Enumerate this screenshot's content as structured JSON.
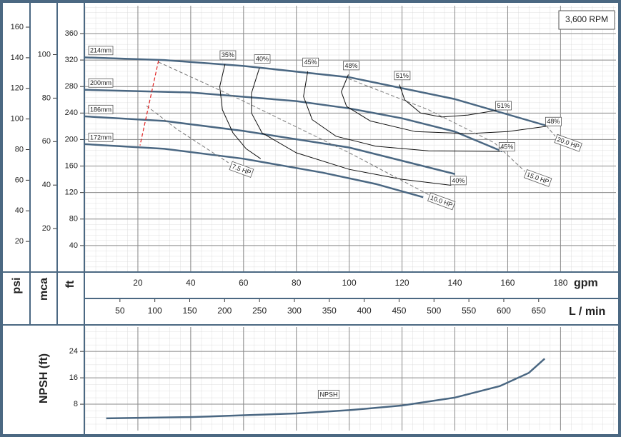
{
  "chart_data": [
    {
      "type": "line",
      "title": "3,600 RPM",
      "xlabel": "gpm",
      "xlim": [
        0,
        201
      ],
      "xticks": [
        20,
        40,
        60,
        80,
        100,
        120,
        140,
        160,
        180
      ],
      "x2label": "L / min",
      "x2lim": [
        0,
        760.8
      ],
      "x2ticks": [
        50,
        100,
        150,
        200,
        250,
        300,
        350,
        400,
        450,
        500,
        550,
        600,
        650
      ],
      "ylabel": "ft",
      "ylim": [
        0,
        402
      ],
      "yticks": [
        40,
        80,
        120,
        160,
        200,
        240,
        280,
        320,
        360
      ],
      "y2label": "psi",
      "y2lim": [
        0,
        174
      ],
      "y2ticks": [
        20,
        40,
        60,
        80,
        100,
        120,
        140,
        160
      ],
      "y3label": "mca",
      "y3lim": [
        0,
        122.5
      ],
      "y3ticks": [
        20,
        40,
        60,
        80,
        100
      ],
      "grid": true,
      "series": [
        {
          "name": "214mm",
          "color": "#4a6782",
          "width": 2.5,
          "label_at": "start",
          "x": [
            0,
            30,
            60,
            100,
            140,
            174.6
          ],
          "values": [
            324,
            320,
            311,
            294,
            261,
            221
          ]
        },
        {
          "name": "200mm",
          "color": "#4a6782",
          "width": 2.5,
          "label_at": "start",
          "x": [
            0,
            40,
            80,
            100,
            120,
            140,
            158
          ],
          "values": [
            275,
            271,
            258,
            247,
            232,
            212,
            182
          ]
        },
        {
          "name": "186mm",
          "color": "#4a6782",
          "width": 2.5,
          "label_at": "start",
          "x": [
            0,
            30,
            60,
            100,
            120,
            140
          ],
          "values": [
            235,
            228,
            213,
            188,
            168,
            148
          ]
        },
        {
          "name": "172mm",
          "color": "#4a6782",
          "width": 2.5,
          "label_at": "start",
          "x": [
            0,
            30,
            60,
            90,
            110,
            128
          ],
          "values": [
            193,
            186,
            171,
            150,
            133,
            113
          ]
        },
        {
          "name": "35%",
          "color": "#111111",
          "width": 1,
          "label_at": "top",
          "x": [
            53,
            51,
            52,
            56,
            61,
            66.5
          ],
          "values": [
            314,
            280,
            245,
            210,
            186,
            171
          ]
        },
        {
          "name": "40%",
          "color": "#111111",
          "width": 1,
          "label_at": "both",
          "x": [
            66,
            63,
            63,
            67,
            80,
            100,
            120,
            138.6
          ],
          "values": [
            308,
            270,
            240,
            210,
            180,
            155,
            140,
            131
          ]
        },
        {
          "name": "45%",
          "color": "#111111",
          "width": 1,
          "label_at": "both",
          "x": [
            84.3,
            82.7,
            86,
            95,
            110,
            130,
            157
          ],
          "values": [
            303,
            265,
            230,
            205,
            190,
            183,
            182
          ]
        },
        {
          "name": "48%",
          "color": "#111111",
          "width": 1,
          "label_at": "both",
          "x": [
            99.7,
            97,
            99,
            108,
            125,
            145,
            160,
            174.6
          ],
          "values": [
            298,
            272,
            250,
            228,
            212,
            209,
            212,
            220
          ]
        },
        {
          "name": "51%",
          "color": "#111111",
          "width": 1,
          "label_at": "both",
          "x": [
            119,
            121,
            127,
            135,
            145,
            155.7
          ],
          "values": [
            283,
            260,
            240,
            234,
            237,
            244
          ]
        },
        {
          "name": "7.5 HP",
          "color": "#777777",
          "width": 1,
          "dashed": true,
          "label_at": "end",
          "x": [
            23.2,
            35,
            54.3
          ],
          "values": [
            251,
            215,
            165
          ]
        },
        {
          "name": "10.0 HP",
          "color": "#777777",
          "width": 1,
          "dashed": true,
          "label_at": "end",
          "x": [
            27.8,
            60,
            100,
            130
          ],
          "values": [
            317,
            258,
            180,
            117
          ]
        },
        {
          "name": "15.0 HP",
          "color": "#777777",
          "width": 1,
          "dashed": true,
          "label_at": "end",
          "x": [
            99.7,
            130,
            155,
            166.5
          ],
          "values": [
            292,
            245,
            195,
            152
          ]
        },
        {
          "name": "20.0 HP",
          "color": "#777777",
          "width": 1,
          "dashed": true,
          "label_at": "end",
          "x": [
            174.6,
            178
          ],
          "values": [
            221,
            205
          ]
        },
        {
          "color": "#e02020",
          "width": 1.2,
          "dashed": true,
          "x": [
            27.8,
            20.8
          ],
          "values": [
            319,
            191
          ]
        }
      ]
    },
    {
      "type": "line",
      "ylabel": "NPSH (ft)",
      "xlim": [
        0,
        201
      ],
      "ylim": [
        0,
        31.4
      ],
      "yticks": [
        8,
        16,
        24
      ],
      "share_x": true,
      "grid": true,
      "series": [
        {
          "name": "NPSH",
          "color": "#4a6782",
          "width": 2.5,
          "x": [
            8,
            40,
            80,
            100,
            120,
            140,
            157,
            168,
            174
          ],
          "values": [
            3.7,
            4.1,
            5.2,
            6.2,
            7.6,
            10,
            13.5,
            17.5,
            21.8
          ]
        }
      ]
    }
  ]
}
